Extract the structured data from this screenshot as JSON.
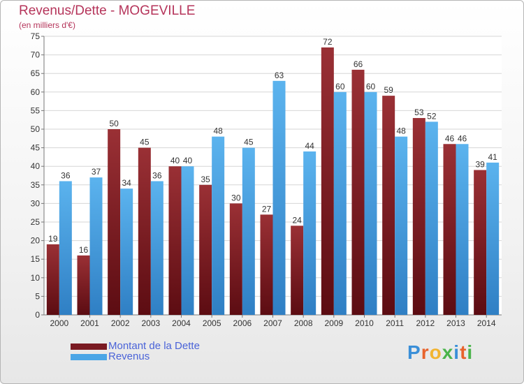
{
  "header": {
    "title": "Revenus/Dette - MOGEVILLE",
    "subtitle": "(en milliers d'€)"
  },
  "legend": {
    "items": [
      {
        "label": "Montant de la Dette",
        "color": "#7a1a22"
      },
      {
        "label": "Revenus",
        "color": "#4aa5e6"
      }
    ]
  },
  "logo": {
    "letters": [
      "P",
      "r",
      "o",
      "x",
      "i",
      "t",
      "i"
    ],
    "colors": [
      "#3a8fd8",
      "#e8632c",
      "#f2b431",
      "#4bb44b",
      "#3a8fd8",
      "#e8632c",
      "#4bb44b"
    ]
  },
  "colors": {
    "dette_top": "#9a3035",
    "dette_bottom": "#5c0c12",
    "revenus_top": "#5bb3ee",
    "revenus_bottom": "#2f7fc4",
    "title": "#b5345a"
  },
  "chart_data": {
    "type": "bar",
    "title": "Revenus/Dette - MOGEVILLE",
    "subtitle": "(en milliers d'€)",
    "categories": [
      "2000",
      "2001",
      "2002",
      "2003",
      "2004",
      "2005",
      "2006",
      "2007",
      "2008",
      "2009",
      "2010",
      "2011",
      "2012",
      "2013",
      "2014"
    ],
    "series": [
      {
        "name": "Montant de la Dette",
        "values": [
          19,
          16,
          50,
          45,
          40,
          35,
          30,
          27,
          24,
          72,
          66,
          59,
          53,
          46,
          39
        ]
      },
      {
        "name": "Revenus",
        "values": [
          36,
          37,
          34,
          36,
          40,
          48,
          45,
          63,
          44,
          60,
          60,
          48,
          52,
          46,
          41
        ]
      }
    ],
    "ylim": [
      0,
      75
    ],
    "yticks": [
      0,
      5,
      10,
      15,
      20,
      25,
      30,
      35,
      40,
      45,
      50,
      55,
      60,
      65,
      70,
      75
    ],
    "grid": true,
    "legend_position": "bottom-left"
  }
}
